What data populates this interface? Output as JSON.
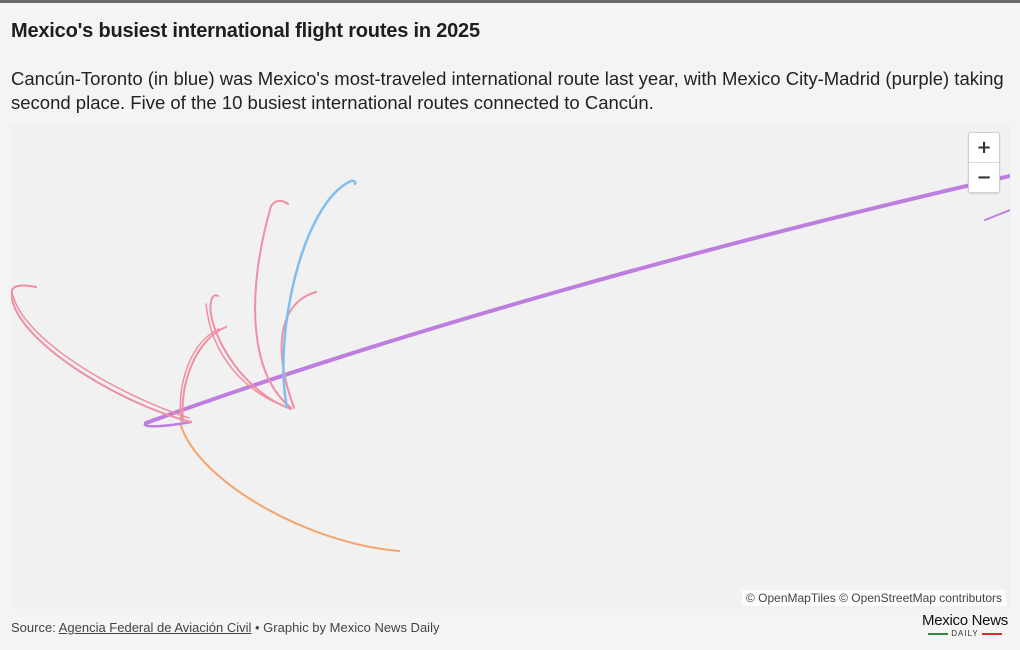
{
  "header": {
    "title": "Mexico's busiest international flight routes in 2025",
    "subtitle": "Cancún-Toronto (in blue) was Mexico's most-traveled international route last year, with Mexico City-Madrid (purple) taking second place. Five of the 10 busiest international routes connected to Cancún."
  },
  "map": {
    "zoom_in_label": "+",
    "zoom_out_label": "−",
    "attribution": "© OpenMapTiles © OpenStreetMap contributors",
    "colors": {
      "background": "#f1f1f1",
      "cancun_toronto": "#7fbef0",
      "mexico_city_madrid": "#be7ee0",
      "other_routes": "#f08ea2",
      "other_route_orange": "#f3a56c"
    }
  },
  "footer": {
    "source_prefix": "Source: ",
    "source_link": "Agencia Federal de Aviación Civil",
    "credit": " • Graphic by Mexico News Daily"
  },
  "logo": {
    "name": "Mexico News",
    "sub": "DAILY",
    "bar_left_color": "#2e8b3d",
    "bar_right_color": "#d0312d"
  }
}
